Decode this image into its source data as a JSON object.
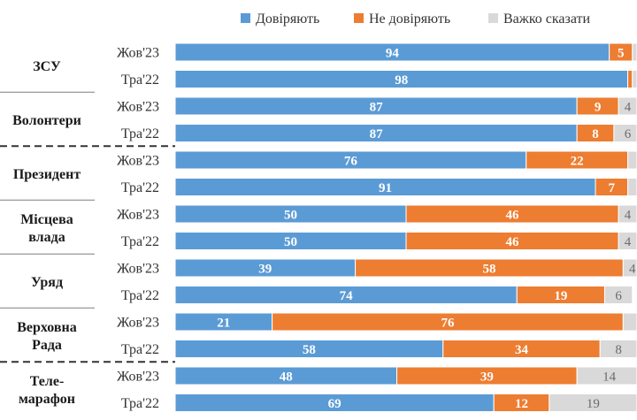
{
  "chart_data": {
    "type": "bar",
    "orientation": "horizontal",
    "stacked": true,
    "xlim": [
      0,
      100
    ],
    "legend_position": "top-right",
    "series": [
      {
        "name": "Довіряють",
        "color": "#5b9bd5"
      },
      {
        "name": "Не довіряють",
        "color": "#ed7d31"
      },
      {
        "name": "Важко сказати",
        "color": "#d9d9d9"
      }
    ],
    "groups": [
      {
        "label": [
          "ЗСУ"
        ],
        "rows": [
          {
            "period": "Жов'23",
            "values": [
              94,
              5,
              1
            ],
            "labels": [
              "94",
              "5",
              ""
            ]
          },
          {
            "period": "Тра'22",
            "values": [
              98,
              1,
              1
            ],
            "labels": [
              "98",
              "",
              ""
            ]
          }
        ]
      },
      {
        "label": [
          "Волонтери"
        ],
        "rows": [
          {
            "period": "Жов'23",
            "values": [
              87,
              9,
              4
            ],
            "labels": [
              "87",
              "9",
              "4"
            ]
          },
          {
            "period": "Тра'22",
            "values": [
              87,
              8,
              6
            ],
            "labels": [
              "87",
              "8",
              "6"
            ]
          }
        ]
      },
      {
        "label": [
          "Президент"
        ],
        "rows": [
          {
            "period": "Жов'23",
            "values": [
              76,
              22,
              2
            ],
            "labels": [
              "76",
              "22",
              ""
            ]
          },
          {
            "period": "Тра'22",
            "values": [
              91,
              7,
              2
            ],
            "labels": [
              "91",
              "7",
              ""
            ]
          }
        ]
      },
      {
        "label": [
          "Місцева",
          "влада"
        ],
        "rows": [
          {
            "period": "Жов'23",
            "values": [
              50,
              46,
              4
            ],
            "labels": [
              "50",
              "46",
              "4"
            ]
          },
          {
            "period": "Тра'22",
            "values": [
              50,
              46,
              4
            ],
            "labels": [
              "50",
              "46",
              "4"
            ]
          }
        ]
      },
      {
        "label": [
          "Уряд"
        ],
        "rows": [
          {
            "period": "Жов'23",
            "values": [
              39,
              58,
              4
            ],
            "labels": [
              "39",
              "58",
              "4"
            ]
          },
          {
            "period": "Тра'22",
            "values": [
              74,
              19,
              6
            ],
            "labels": [
              "74",
              "19",
              "6"
            ]
          }
        ]
      },
      {
        "label": [
          "Верховна",
          "Рада"
        ],
        "rows": [
          {
            "period": "Жов'23",
            "values": [
              21,
              76,
              3
            ],
            "labels": [
              "21",
              "76",
              ""
            ]
          },
          {
            "period": "Тра'22",
            "values": [
              58,
              34,
              8
            ],
            "labels": [
              "58",
              "34",
              "8"
            ]
          }
        ]
      },
      {
        "label": [
          "Теле-",
          "марафон"
        ],
        "rows": [
          {
            "period": "Жов'23",
            "values": [
              48,
              39,
              14
            ],
            "labels": [
              "48",
              "39",
              "14"
            ]
          },
          {
            "period": "Тра'22",
            "values": [
              69,
              12,
              19
            ],
            "labels": [
              "69",
              "12",
              "19"
            ]
          }
        ]
      }
    ]
  }
}
